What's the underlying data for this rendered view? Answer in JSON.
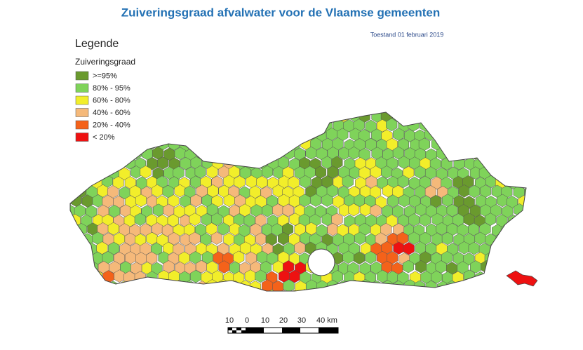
{
  "header": {
    "title": "Zuiveringsgraad afvalwater voor de Vlaamse gemeenten",
    "date": "Toestand 01 februari 2019"
  },
  "legend": {
    "title": "Legende",
    "subtitle": "Zuiveringsgraad",
    "items": [
      {
        "label": ">=95%",
        "color": "#6a9a2e"
      },
      {
        "label": "80% - 95%",
        "color": "#7fd35a"
      },
      {
        "label": "60% - 80%",
        "color": "#f2ee2a"
      },
      {
        "label": "40% - 60%",
        "color": "#f5b97a"
      },
      {
        "label": "20% - 40%",
        "color": "#f4621a"
      },
      {
        "label": "< 20%",
        "color": "#ee1111"
      }
    ]
  },
  "scale": {
    "labels": [
      "10",
      "0",
      "10",
      "20",
      "30",
      "40 km"
    ]
  }
}
